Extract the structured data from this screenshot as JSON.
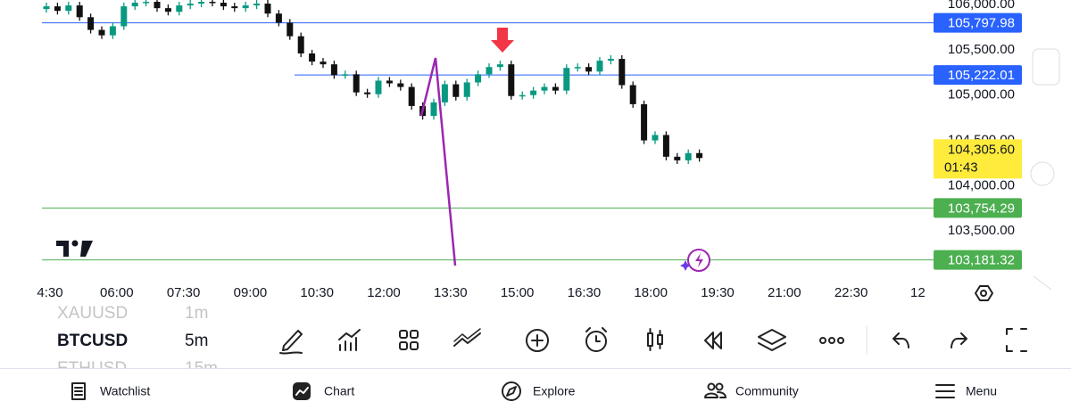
{
  "chart_data": {
    "type": "candlestick",
    "categories": [
      "4:30",
      "06:00",
      "07:30",
      "09:00",
      "10:30",
      "12:00",
      "13:30",
      "15:00",
      "16:30",
      "18:00",
      "19:30",
      "21:00",
      "22:30",
      "12"
    ],
    "open": [
      105950,
      105980,
      105930,
      105990,
      105860,
      105720,
      105660,
      105760,
      105980,
      106020,
      106030,
      105960,
      105920,
      105990,
      106010,
      106030,
      106020,
      105980,
      105960,
      105990,
      106010,
      105900,
      105800,
      105650,
      105460,
      105370,
      105340,
      105220,
      105230,
      105030,
      105010,
      105160,
      105130,
      105090,
      104880,
      104770,
      104920,
      105120,
      104980,
      105140,
      105230,
      105310,
      105340,
      104990,
      105000,
      105050,
      105090,
      105050,
      105300,
      105310,
      105260,
      105380,
      105400,
      105110,
      104900,
      104500,
      104560,
      104320,
      104280,
      104360
    ],
    "high": [
      106020,
      106020,
      106030,
      106030,
      105900,
      105760,
      105800,
      106020,
      106060,
      106070,
      106070,
      106000,
      106030,
      106050,
      106070,
      106070,
      106060,
      106020,
      106030,
      106050,
      106050,
      105940,
      105840,
      105690,
      105500,
      105410,
      105380,
      105270,
      105270,
      105070,
      105200,
      105200,
      105170,
      105130,
      104920,
      104960,
      105160,
      105160,
      105180,
      105270,
      105350,
      105380,
      105380,
      105040,
      105090,
      105130,
      105130,
      105340,
      105350,
      105350,
      105420,
      105440,
      105440,
      105150,
      104940,
      104600,
      104600,
      104360,
      104400,
      104400
    ],
    "low": [
      105910,
      105890,
      105890,
      105820,
      105680,
      105620,
      105620,
      105720,
      105940,
      105980,
      105920,
      105880,
      105880,
      105950,
      105970,
      105980,
      105940,
      105920,
      105920,
      105950,
      105860,
      105760,
      105610,
      105420,
      105330,
      105300,
      105180,
      105180,
      104990,
      104970,
      104970,
      105090,
      105050,
      104840,
      104730,
      104730,
      104880,
      104940,
      104940,
      105100,
      105190,
      105270,
      104950,
      104950,
      104960,
      105010,
      105010,
      105010,
      105260,
      105220,
      105220,
      105340,
      105070,
      104860,
      104460,
      104460,
      104280,
      104240,
      104240,
      104265.6
    ],
    "close": [
      105980,
      105930,
      105990,
      105860,
      105720,
      105660,
      105760,
      105980,
      106020,
      106030,
      105960,
      105920,
      105990,
      106010,
      106030,
      106020,
      105980,
      105960,
      105990,
      106010,
      105900,
      105800,
      105650,
      105460,
      105370,
      105340,
      105220,
      105230,
      105030,
      105010,
      105160,
      105130,
      105090,
      104880,
      104770,
      104920,
      105120,
      104980,
      105140,
      105230,
      105310,
      105340,
      104990,
      105000,
      105050,
      105090,
      105050,
      105300,
      105310,
      105260,
      105380,
      105400,
      105110,
      104900,
      104500,
      104560,
      104320,
      104280,
      104360,
      104305.6
    ],
    "up_color": "#089981",
    "down_color": "#111111",
    "ylim": [
      103000,
      106050
    ],
    "yticks": [
      {
        "value": 106000,
        "label": "106,000.00"
      },
      {
        "value": 105500,
        "label": "105,500.00"
      },
      {
        "value": 105000,
        "label": "105,000.00"
      },
      {
        "value": 104500,
        "label": "104,500.00"
      },
      {
        "value": 104000,
        "label": "104,000.00"
      },
      {
        "value": 103500,
        "label": "103,500.00"
      }
    ],
    "levels": [
      {
        "value": 105797.98,
        "label": "105,797.98",
        "color": "#2962ff"
      },
      {
        "value": 105222.01,
        "label": "105,222.01",
        "color": "#2962ff"
      },
      {
        "value": 103754.29,
        "label": "103,754.29",
        "color": "#4caf50"
      },
      {
        "value": 103181.32,
        "label": "103,181.32",
        "color": "#4caf50"
      }
    ],
    "current": {
      "value": 104305.6,
      "label": "104,305.60",
      "countdown": "01:43",
      "color": "#ffeb3b"
    }
  },
  "toolbar": {
    "symbols": [
      {
        "symbol": "XAUUSD",
        "interval": "1m"
      },
      {
        "symbol": "BTCUSD",
        "interval": "5m"
      },
      {
        "symbol": "ETHUSD",
        "interval": "15m"
      }
    ]
  },
  "nav": [
    "Watchlist",
    "Chart",
    "Explore",
    "Community",
    "Menu"
  ]
}
